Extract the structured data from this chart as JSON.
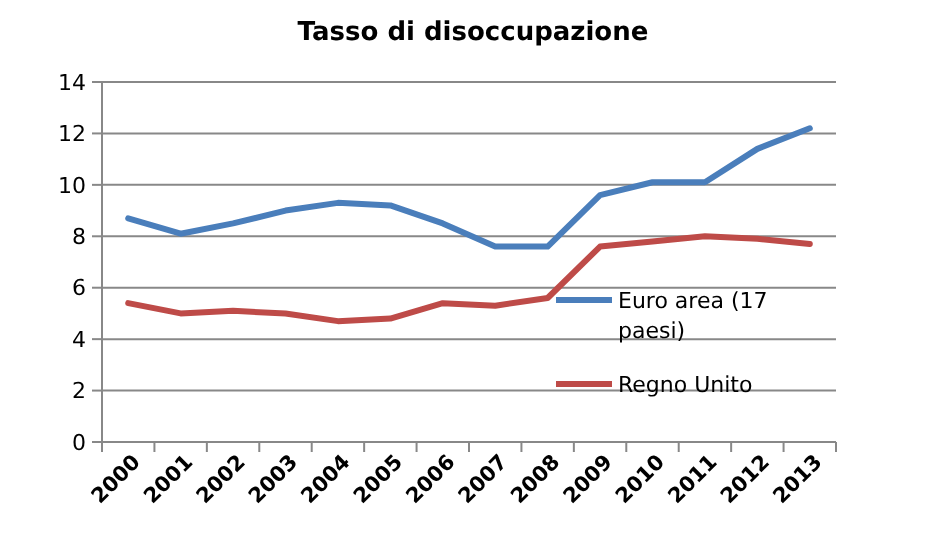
{
  "chart_data": {
    "type": "line",
    "title": "Tasso di disoccupazione",
    "categories": [
      "2000",
      "2001",
      "2002",
      "2003",
      "2004",
      "2005",
      "2006",
      "2007",
      "2008",
      "2009",
      "2010",
      "2011",
      "2012",
      "2013"
    ],
    "series": [
      {
        "name": "Euro area (17 paesi)",
        "color": "#4a7ebb",
        "values": [
          8.7,
          8.1,
          8.5,
          9.0,
          9.3,
          9.2,
          8.5,
          7.6,
          7.6,
          9.6,
          10.1,
          10.1,
          11.4,
          12.2
        ]
      },
      {
        "name": "Regno Unito",
        "color": "#be4b48",
        "values": [
          5.4,
          5.0,
          5.1,
          5.0,
          4.7,
          4.8,
          5.4,
          5.3,
          5.6,
          7.6,
          7.8,
          8.0,
          7.9,
          7.7
        ]
      }
    ],
    "ylim": [
      0,
      14
    ],
    "yticks": [
      0,
      2,
      4,
      6,
      8,
      10,
      12,
      14
    ],
    "grid": "y",
    "legend": "right",
    "marker": "none",
    "line_style": "solid"
  }
}
